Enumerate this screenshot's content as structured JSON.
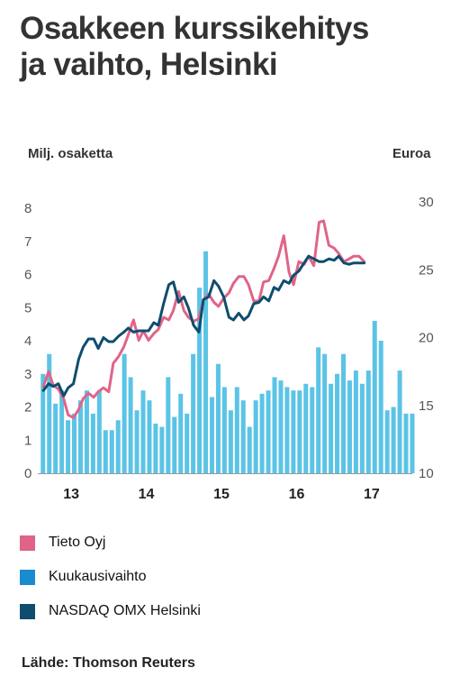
{
  "title": {
    "line1": "Osakkeen kurssikehitys",
    "line2": "ja vaihto, Helsinki"
  },
  "source": "Lähde: Thomson Reuters",
  "colors": {
    "tieto": "#e06488",
    "volume": "#5bc4e6",
    "nasdaq": "#0f4d6e",
    "legend_volume": "#1a8bd0",
    "axis": "#999999"
  },
  "chart_data": {
    "type": "bar+line",
    "ylabel_left": "Milj. osaketta",
    "ylabel_right": "Euroa",
    "ylim_left": [
      0,
      8
    ],
    "ylim_right": [
      10,
      30
    ],
    "yticks_left": [
      "0",
      "1",
      "2",
      "3",
      "4",
      "5",
      "6",
      "7",
      "8"
    ],
    "yticks_right": [
      "10",
      "15",
      "20",
      "25",
      "30"
    ],
    "xlim": [
      2012.58,
      2017.54
    ],
    "xticks": [
      {
        "label": "13",
        "x": 2013.0
      },
      {
        "label": "14",
        "x": 2014.0
      },
      {
        "label": "15",
        "x": 2015.0
      },
      {
        "label": "16",
        "x": 2016.0
      },
      {
        "label": "17",
        "x": 2017.0
      }
    ],
    "legend": [
      {
        "label": "Tieto Oyj",
        "color_key": "tieto"
      },
      {
        "label": "Kuukausivaihto",
        "color_key": "legend_volume"
      },
      {
        "label": "NASDAQ OMX Helsinki",
        "color_key": "nasdaq"
      }
    ],
    "bars": {
      "name": "Kuukausivaihto",
      "axis": "left",
      "x_start": 2012.625,
      "x_step": 0.0833,
      "values": [
        3.0,
        3.6,
        2.1,
        2.5,
        1.6,
        1.8,
        2.2,
        2.5,
        1.8,
        2.5,
        1.3,
        1.3,
        1.6,
        3.6,
        2.9,
        1.9,
        2.5,
        2.2,
        1.5,
        1.4,
        2.9,
        1.7,
        2.4,
        1.8,
        3.6,
        5.6,
        6.7,
        2.3,
        3.3,
        2.6,
        1.9,
        2.6,
        2.2,
        1.4,
        2.2,
        2.4,
        2.5,
        2.9,
        2.8,
        2.6,
        2.5,
        2.5,
        2.7,
        2.6,
        3.8,
        3.6,
        2.7,
        3.0,
        3.6,
        2.8,
        3.1,
        2.7,
        3.1,
        4.6,
        4.0,
        1.9,
        2.0,
        3.1,
        1.8,
        1.8
      ]
    },
    "series": [
      {
        "name": "Tieto Oyj",
        "axis": "right",
        "color_key": "tieto",
        "points": [
          [
            2012.63,
            16.4
          ],
          [
            2012.7,
            17.5
          ],
          [
            2012.76,
            16.5
          ],
          [
            2012.83,
            16.2
          ],
          [
            2012.9,
            15.5
          ],
          [
            2012.96,
            14.3
          ],
          [
            2013.03,
            14.1
          ],
          [
            2013.1,
            14.7
          ],
          [
            2013.16,
            15.5
          ],
          [
            2013.23,
            15.9
          ],
          [
            2013.3,
            15.6
          ],
          [
            2013.36,
            16.0
          ],
          [
            2013.43,
            16.3
          ],
          [
            2013.5,
            16.0
          ],
          [
            2013.56,
            18.1
          ],
          [
            2013.63,
            18.6
          ],
          [
            2013.7,
            19.3
          ],
          [
            2013.76,
            20.2
          ],
          [
            2013.83,
            21.3
          ],
          [
            2013.9,
            19.8
          ],
          [
            2013.96,
            20.5
          ],
          [
            2014.03,
            19.8
          ],
          [
            2014.1,
            20.3
          ],
          [
            2014.16,
            20.6
          ],
          [
            2014.23,
            21.5
          ],
          [
            2014.3,
            21.3
          ],
          [
            2014.36,
            22.0
          ],
          [
            2014.43,
            23.4
          ],
          [
            2014.5,
            22.0
          ],
          [
            2014.56,
            21.5
          ],
          [
            2014.63,
            21.2
          ],
          [
            2014.7,
            21.4
          ],
          [
            2014.76,
            22.8
          ],
          [
            2014.83,
            23.2
          ],
          [
            2014.9,
            22.6
          ],
          [
            2014.96,
            22.3
          ],
          [
            2015.03,
            22.9
          ],
          [
            2015.1,
            23.3
          ],
          [
            2015.16,
            24.0
          ],
          [
            2015.23,
            24.5
          ],
          [
            2015.3,
            24.5
          ],
          [
            2015.36,
            23.9
          ],
          [
            2015.43,
            22.7
          ],
          [
            2015.5,
            22.7
          ],
          [
            2015.56,
            24.1
          ],
          [
            2015.63,
            24.2
          ],
          [
            2015.7,
            25.1
          ],
          [
            2015.76,
            26.0
          ],
          [
            2015.83,
            27.5
          ],
          [
            2015.9,
            24.8
          ],
          [
            2015.96,
            23.9
          ],
          [
            2016.03,
            25.6
          ],
          [
            2016.1,
            25.4
          ],
          [
            2016.16,
            26.0
          ],
          [
            2016.23,
            25.3
          ],
          [
            2016.3,
            28.5
          ],
          [
            2016.36,
            28.6
          ],
          [
            2016.43,
            26.8
          ],
          [
            2016.5,
            26.6
          ],
          [
            2016.56,
            26.2
          ],
          [
            2016.63,
            25.6
          ],
          [
            2016.7,
            25.8
          ],
          [
            2016.76,
            26.0
          ],
          [
            2016.83,
            26.0
          ],
          [
            2016.9,
            25.6
          ]
        ]
      },
      {
        "name": "NASDAQ OMX Helsinki",
        "axis": "right",
        "color_key": "nasdaq",
        "points": [
          [
            2012.63,
            16.1
          ],
          [
            2012.7,
            16.6
          ],
          [
            2012.76,
            16.4
          ],
          [
            2012.83,
            16.6
          ],
          [
            2012.9,
            15.7
          ],
          [
            2012.96,
            16.3
          ],
          [
            2013.03,
            16.6
          ],
          [
            2013.1,
            18.4
          ],
          [
            2013.16,
            19.3
          ],
          [
            2013.23,
            19.9
          ],
          [
            2013.3,
            19.9
          ],
          [
            2013.36,
            19.2
          ],
          [
            2013.43,
            20.0
          ],
          [
            2013.5,
            19.7
          ],
          [
            2013.56,
            19.7
          ],
          [
            2013.63,
            20.1
          ],
          [
            2013.7,
            20.4
          ],
          [
            2013.76,
            20.7
          ],
          [
            2013.83,
            20.4
          ],
          [
            2013.9,
            20.5
          ],
          [
            2013.96,
            20.5
          ],
          [
            2014.03,
            20.5
          ],
          [
            2014.1,
            21.1
          ],
          [
            2014.16,
            20.9
          ],
          [
            2014.23,
            22.5
          ],
          [
            2014.3,
            23.9
          ],
          [
            2014.36,
            24.1
          ],
          [
            2014.43,
            22.6
          ],
          [
            2014.5,
            23.0
          ],
          [
            2014.56,
            22.2
          ],
          [
            2014.63,
            20.9
          ],
          [
            2014.7,
            20.4
          ],
          [
            2014.76,
            22.8
          ],
          [
            2014.83,
            23.0
          ],
          [
            2014.9,
            24.2
          ],
          [
            2014.96,
            23.8
          ],
          [
            2015.03,
            23.0
          ],
          [
            2015.1,
            21.5
          ],
          [
            2015.16,
            21.3
          ],
          [
            2015.23,
            21.8
          ],
          [
            2015.3,
            21.3
          ],
          [
            2015.36,
            21.6
          ],
          [
            2015.43,
            22.5
          ],
          [
            2015.5,
            22.6
          ],
          [
            2015.56,
            23.0
          ],
          [
            2015.63,
            22.7
          ],
          [
            2015.7,
            23.7
          ],
          [
            2015.76,
            23.5
          ],
          [
            2015.83,
            24.2
          ],
          [
            2015.9,
            24.0
          ],
          [
            2015.96,
            24.6
          ],
          [
            2016.03,
            24.9
          ],
          [
            2016.1,
            25.5
          ],
          [
            2016.16,
            26.0
          ],
          [
            2016.23,
            25.8
          ],
          [
            2016.3,
            25.6
          ],
          [
            2016.36,
            25.6
          ],
          [
            2016.43,
            25.8
          ],
          [
            2016.5,
            25.7
          ],
          [
            2016.56,
            26.0
          ],
          [
            2016.63,
            25.5
          ],
          [
            2016.7,
            25.4
          ],
          [
            2016.76,
            25.5
          ],
          [
            2016.83,
            25.5
          ],
          [
            2016.9,
            25.5
          ]
        ]
      }
    ]
  }
}
